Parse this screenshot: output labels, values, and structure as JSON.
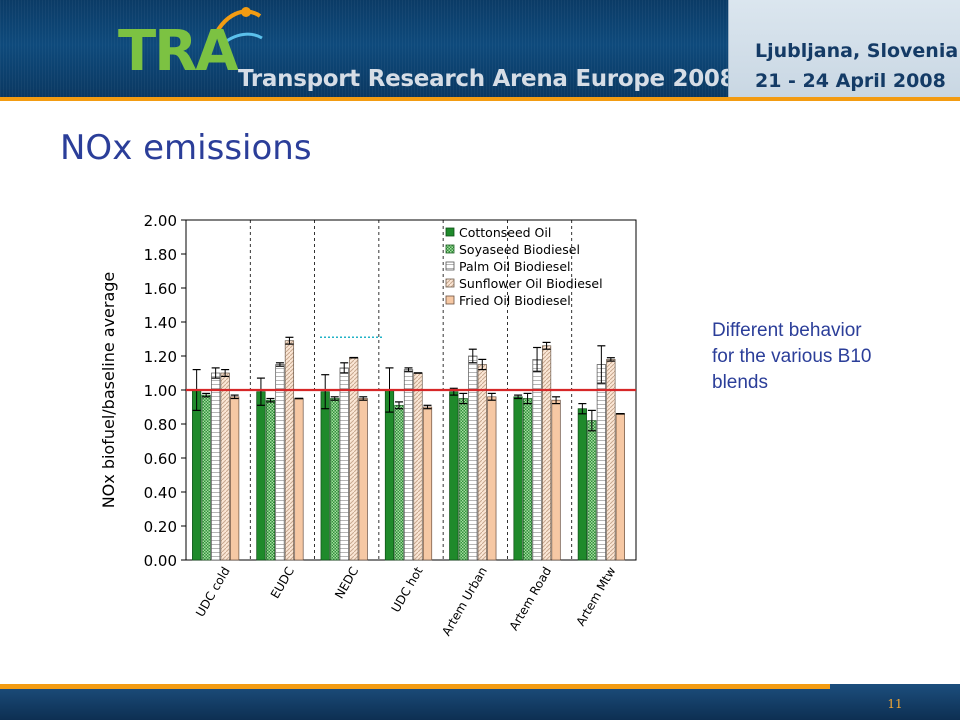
{
  "header": {
    "logo_text": "TRA",
    "subtitle": "Transport Research Arena Europe 2008",
    "event_city": "Ljubljana, Slovenia",
    "event_dates": "21 - 24 April 2008"
  },
  "slide": {
    "title": "NOx emissions",
    "side_note": "Different behavior for the various B10 blends",
    "page_number": "11"
  },
  "colors": {
    "title": "#2b3e99",
    "reference_line": "#d62728",
    "accent_orange": "#f39c12",
    "header_blue": "#0e4a7c"
  },
  "chart_data": {
    "type": "bar",
    "ylabel": "NOx biofuel/baseline average",
    "xlabel": "",
    "ylim": [
      0,
      2
    ],
    "yticks": [
      "0.00",
      "0.20",
      "0.40",
      "0.60",
      "0.80",
      "1.00",
      "1.20",
      "1.40",
      "1.60",
      "1.80",
      "2.00"
    ],
    "grid": "dashed vertical separators",
    "legend_position": "top-right inside",
    "reference_line": 1.0,
    "categories": [
      "UDC cold",
      "EUDC",
      "NEDC",
      "UDC hot",
      "Artem Urban",
      "Artem Road",
      "Artem Mtw"
    ],
    "series": [
      {
        "name": "Cottonseed Oil",
        "values": [
          1.0,
          0.99,
          0.99,
          1.0,
          0.99,
          0.96,
          0.89
        ],
        "errors": [
          0.12,
          0.08,
          0.1,
          0.13,
          0.02,
          0.01,
          0.03
        ]
      },
      {
        "name": "Soyaseed Biodiesel",
        "values": [
          0.97,
          0.94,
          0.95,
          0.91,
          0.95,
          0.95,
          0.82
        ],
        "errors": [
          0.01,
          0.01,
          0.01,
          0.02,
          0.03,
          0.03,
          0.06
        ]
      },
      {
        "name": "Palm Oil Biodiesel",
        "values": [
          1.1,
          1.15,
          1.13,
          1.12,
          1.2,
          1.18,
          1.15
        ],
        "errors": [
          0.03,
          0.01,
          0.03,
          0.01,
          0.04,
          0.07,
          0.11
        ]
      },
      {
        "name": "Sunflower Oil Biodiesel",
        "values": [
          1.1,
          1.29,
          1.19,
          1.1,
          1.15,
          1.26,
          1.18
        ],
        "errors": [
          0.02,
          0.02,
          0.0,
          0.0,
          0.03,
          0.02,
          0.01
        ]
      },
      {
        "name": "Fried Oil Biodiesel",
        "values": [
          0.96,
          0.95,
          0.95,
          0.9,
          0.96,
          0.94,
          0.86
        ],
        "errors": [
          0.01,
          0.0,
          0.01,
          0.01,
          0.02,
          0.02,
          0.0
        ]
      }
    ],
    "series_colors": [
      "#1f8a2b",
      "#7fc47a",
      "#f2f2f2",
      "#f3d2b8",
      "#f6c8a4"
    ]
  }
}
